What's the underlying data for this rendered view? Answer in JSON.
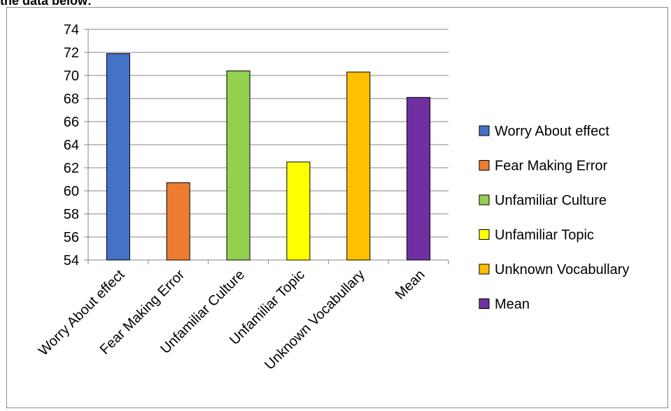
{
  "page_top_text": "the data below:",
  "chart_data": {
    "type": "bar",
    "title": "",
    "xlabel": "",
    "ylabel": "",
    "categories": [
      "Worry About effect",
      "Fear Making Error",
      "Unfamiliar Culture",
      "Unfamiliar Topic",
      "Unknown Vocabullary",
      "Mean"
    ],
    "values": [
      71.9,
      60.7,
      70.4,
      62.5,
      70.3,
      68.1
    ],
    "colors": [
      "#4472C4",
      "#ED7D31",
      "#92D050",
      "#FFFF00",
      "#FFC000",
      "#7030A0"
    ],
    "ylim": [
      54,
      74
    ],
    "yticks": [
      54,
      56,
      58,
      60,
      62,
      64,
      66,
      68,
      70,
      72,
      74
    ],
    "grid": true,
    "legend_position": "right",
    "legend": [
      "Worry About effect",
      "Fear Making Error",
      "Unfamiliar Culture",
      "Unfamiliar Topic",
      "Unknown Vocabullary",
      "Mean"
    ]
  }
}
